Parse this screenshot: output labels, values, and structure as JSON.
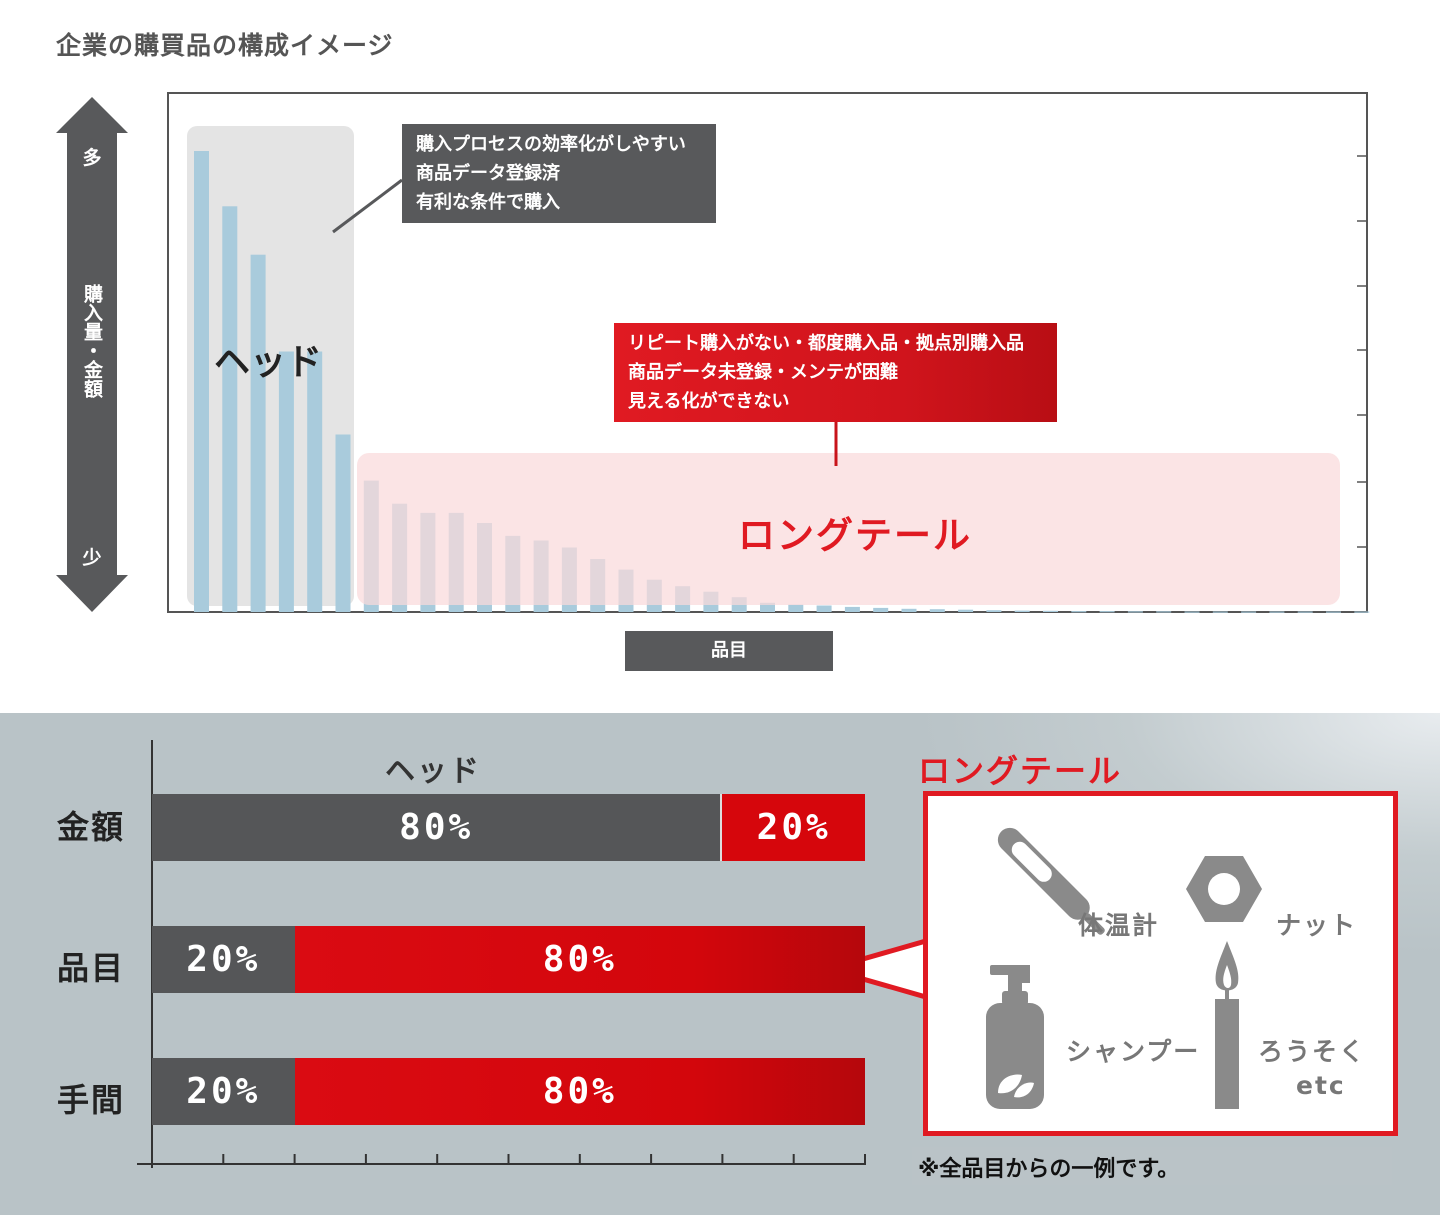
{
  "page_title": "企業の購買品の構成イメージ",
  "colors": {
    "dark_gray": "#58595b",
    "red": "#e01a22",
    "bar_blue": "#a9cbdc",
    "head_highlight": "#e4e4e4",
    "tail_highlight": "#f9dadb"
  },
  "upper": {
    "y_axis": {
      "label": "購入量・金額",
      "more": "多",
      "less": "少"
    },
    "x_axis": {
      "label": "品目"
    },
    "head_label": "ヘッド",
    "tail_label": "ロングテール",
    "head_callout": [
      "購入プロセスの効率化がしやすい",
      "商品データ登録済",
      "有利な条件で購入"
    ],
    "tail_callout": [
      "リピート購入がない・都度購入品・拠点別購入品",
      "商品データ未登録・メンテが困難",
      "見える化ができない"
    ]
  },
  "lower": {
    "head_label": "ヘッド",
    "tail_label": "ロングテール",
    "rows": [
      {
        "label": "金額",
        "head_pct": "80%",
        "tail_pct": "20%",
        "head_value": 80,
        "tail_value": 20
      },
      {
        "label": "品目",
        "head_pct": "20%",
        "tail_pct": "80%",
        "head_value": 20,
        "tail_value": 80
      },
      {
        "label": "手間",
        "head_pct": "20%",
        "tail_pct": "80%",
        "head_value": 20,
        "tail_value": 80
      }
    ],
    "examples": {
      "items": [
        "体温計",
        "ナット",
        "シャンプー",
        "ろうそく"
      ],
      "etc": "etc",
      "icons": [
        "thermometer-icon",
        "hex-nut-icon",
        "shampoo-bottle-icon",
        "candle-icon"
      ]
    },
    "footnote": "※全品目からの一例です。"
  },
  "chart_data": [
    {
      "type": "bar",
      "title": "企業の購買品の構成イメージ",
      "xlabel": "品目",
      "ylabel": "購入量・金額",
      "grid": false,
      "values": [
        100,
        88,
        77.5,
        56.5,
        56.5,
        38.5,
        28.5,
        23.5,
        21.5,
        21.5,
        19.3,
        16.5,
        15.5,
        14,
        11.5,
        9.2,
        7,
        5.6,
        4.4,
        3.2,
        2,
        1.6,
        1.4,
        1.1,
        0.9,
        0.7,
        0.6,
        0.5,
        0.4,
        0.3,
        0.25,
        0.2,
        0.2,
        0.15,
        0.15,
        0.1,
        0.1,
        0.1,
        0.1,
        0.1,
        0.1,
        0.1
      ],
      "head_count": 6
    },
    {
      "type": "bar",
      "orientation": "horizontal-stacked",
      "categories": [
        "金額",
        "品目",
        "手間"
      ],
      "series": [
        {
          "name": "ヘッド",
          "values": [
            80,
            20,
            20
          ]
        },
        {
          "name": "ロングテール",
          "values": [
            20,
            80,
            80
          ]
        }
      ],
      "xlim": [
        0,
        100
      ]
    }
  ]
}
